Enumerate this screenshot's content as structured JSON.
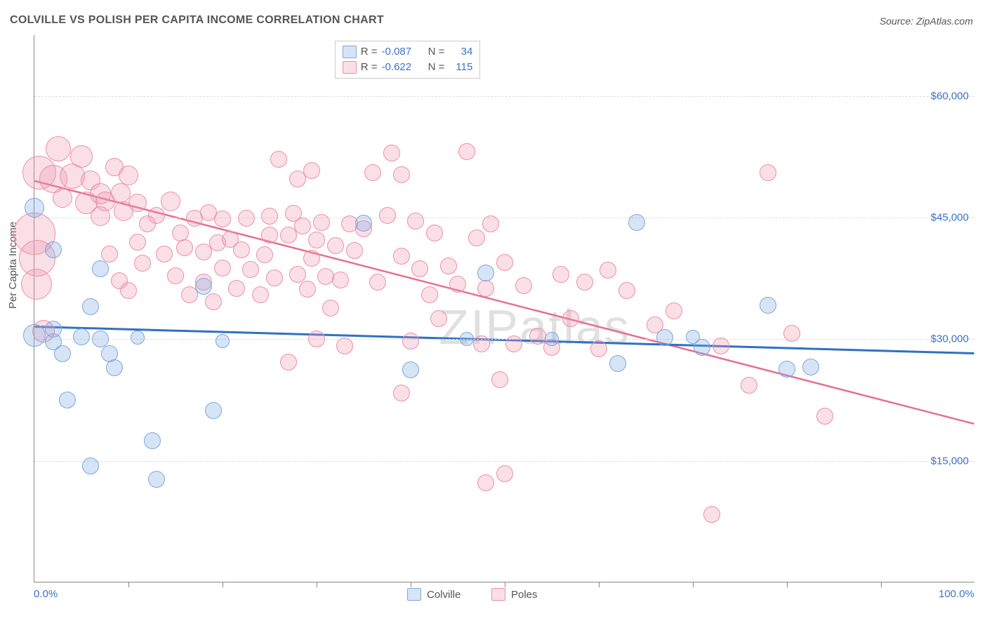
{
  "title": "COLVILLE VS POLISH PER CAPITA INCOME CORRELATION CHART",
  "source": "Source: ZipAtlas.com",
  "watermark": "ZIPatlas",
  "y_axis_title": "Per Capita Income",
  "chart": {
    "type": "scatter",
    "xlim": [
      0,
      100
    ],
    "ylim": [
      0,
      67500
    ],
    "x_tick_step_pct": 10,
    "y_ticks": [
      15000,
      30000,
      45000,
      60000
    ],
    "y_tick_labels": [
      "$15,000",
      "$30,000",
      "$45,000",
      "$60,000"
    ],
    "x_min_label": "0.0%",
    "x_max_label": "100.0%",
    "background_color": "#ffffff",
    "grid_color": "#dddddd",
    "series": {
      "colville": {
        "label": "Colville",
        "fill": "rgba(130,170,225,0.32)",
        "stroke": "#7da7de",
        "stroke_width": 1.2,
        "trend_color": "#2f71c4",
        "trend_width": 3,
        "trend": {
          "x1": 0,
          "y1": 31500,
          "x2": 100,
          "y2": 28200
        },
        "R": "-0.087",
        "N": "34",
        "points": [
          {
            "x": 0,
            "y": 46200,
            "r": 14
          },
          {
            "x": 0,
            "y": 30500,
            "r": 16
          },
          {
            "x": 2,
            "y": 41000,
            "r": 12
          },
          {
            "x": 2,
            "y": 31200,
            "r": 12
          },
          {
            "x": 2,
            "y": 29700,
            "r": 12
          },
          {
            "x": 3,
            "y": 28200,
            "r": 12
          },
          {
            "x": 3.5,
            "y": 22500,
            "r": 12
          },
          {
            "x": 5,
            "y": 30300,
            "r": 12
          },
          {
            "x": 7,
            "y": 38700,
            "r": 12
          },
          {
            "x": 7,
            "y": 30000,
            "r": 12
          },
          {
            "x": 8,
            "y": 28200,
            "r": 12
          },
          {
            "x": 6,
            "y": 34000,
            "r": 12
          },
          {
            "x": 8.5,
            "y": 26500,
            "r": 12
          },
          {
            "x": 6,
            "y": 14400,
            "r": 12
          },
          {
            "x": 11,
            "y": 30200,
            "r": 10
          },
          {
            "x": 12.5,
            "y": 17500,
            "r": 12
          },
          {
            "x": 13,
            "y": 12700,
            "r": 12
          },
          {
            "x": 18,
            "y": 36500,
            "r": 12
          },
          {
            "x": 19,
            "y": 21200,
            "r": 12
          },
          {
            "x": 20,
            "y": 29800,
            "r": 10
          },
          {
            "x": 35,
            "y": 44300,
            "r": 12
          },
          {
            "x": 40,
            "y": 26200,
            "r": 12
          },
          {
            "x": 46,
            "y": 30000,
            "r": 10
          },
          {
            "x": 48,
            "y": 38200,
            "r": 12
          },
          {
            "x": 55,
            "y": 30000,
            "r": 10
          },
          {
            "x": 62,
            "y": 27000,
            "r": 12
          },
          {
            "x": 64,
            "y": 44400,
            "r": 12
          },
          {
            "x": 67,
            "y": 30200,
            "r": 12
          },
          {
            "x": 70,
            "y": 30300,
            "r": 10
          },
          {
            "x": 71,
            "y": 29000,
            "r": 12
          },
          {
            "x": 78,
            "y": 34200,
            "r": 12
          },
          {
            "x": 80,
            "y": 26300,
            "r": 12
          },
          {
            "x": 82.5,
            "y": 26600,
            "r": 12
          }
        ]
      },
      "poles": {
        "label": "Poles",
        "fill": "rgba(240,150,175,0.30)",
        "stroke": "#ed8fa6",
        "stroke_width": 1.2,
        "trend_color": "#e76f8f",
        "trend_width": 2.5,
        "trend": {
          "x1": 0,
          "y1": 49500,
          "x2": 100,
          "y2": 19500
        },
        "R": "-0.622",
        "N": "115",
        "points": [
          {
            "x": 0,
            "y": 43000,
            "r": 30
          },
          {
            "x": 0.5,
            "y": 50500,
            "r": 24
          },
          {
            "x": 0.3,
            "y": 40000,
            "r": 26
          },
          {
            "x": 0.2,
            "y": 36800,
            "r": 22
          },
          {
            "x": 1,
            "y": 31000,
            "r": 16
          },
          {
            "x": 2,
            "y": 49800,
            "r": 20
          },
          {
            "x": 2.5,
            "y": 53500,
            "r": 18
          },
          {
            "x": 4,
            "y": 50100,
            "r": 18
          },
          {
            "x": 3,
            "y": 47400,
            "r": 14
          },
          {
            "x": 5.5,
            "y": 46800,
            "r": 16
          },
          {
            "x": 5,
            "y": 52500,
            "r": 16
          },
          {
            "x": 6,
            "y": 49600,
            "r": 14
          },
          {
            "x": 7,
            "y": 47900,
            "r": 15
          },
          {
            "x": 7,
            "y": 45200,
            "r": 14
          },
          {
            "x": 7.5,
            "y": 47000,
            "r": 14
          },
          {
            "x": 8.5,
            "y": 51200,
            "r": 13
          },
          {
            "x": 9.2,
            "y": 48000,
            "r": 14
          },
          {
            "x": 10,
            "y": 50200,
            "r": 14
          },
          {
            "x": 9.5,
            "y": 45800,
            "r": 14
          },
          {
            "x": 11,
            "y": 46800,
            "r": 13
          },
          {
            "x": 11,
            "y": 42000,
            "r": 12
          },
          {
            "x": 11.5,
            "y": 39400,
            "r": 12
          },
          {
            "x": 12,
            "y": 44200,
            "r": 12
          },
          {
            "x": 13,
            "y": 45300,
            "r": 12
          },
          {
            "x": 13.8,
            "y": 40500,
            "r": 12
          },
          {
            "x": 8,
            "y": 40500,
            "r": 12
          },
          {
            "x": 9,
            "y": 37200,
            "r": 12
          },
          {
            "x": 10,
            "y": 36000,
            "r": 12
          },
          {
            "x": 14.5,
            "y": 47000,
            "r": 14
          },
          {
            "x": 15,
            "y": 37800,
            "r": 12
          },
          {
            "x": 15.5,
            "y": 43100,
            "r": 12
          },
          {
            "x": 16,
            "y": 41300,
            "r": 12
          },
          {
            "x": 16.5,
            "y": 35500,
            "r": 12
          },
          {
            "x": 17,
            "y": 44900,
            "r": 12
          },
          {
            "x": 18,
            "y": 40800,
            "r": 12
          },
          {
            "x": 18,
            "y": 37000,
            "r": 12
          },
          {
            "x": 18.5,
            "y": 45600,
            "r": 12
          },
          {
            "x": 19.5,
            "y": 41900,
            "r": 12
          },
          {
            "x": 19,
            "y": 34600,
            "r": 12
          },
          {
            "x": 20,
            "y": 44800,
            "r": 12
          },
          {
            "x": 20,
            "y": 38800,
            "r": 12
          },
          {
            "x": 20.8,
            "y": 42300,
            "r": 12
          },
          {
            "x": 21.5,
            "y": 36300,
            "r": 12
          },
          {
            "x": 22.5,
            "y": 44900,
            "r": 12
          },
          {
            "x": 22,
            "y": 41000,
            "r": 12
          },
          {
            "x": 23,
            "y": 38600,
            "r": 12
          },
          {
            "x": 24,
            "y": 35500,
            "r": 12
          },
          {
            "x": 24.5,
            "y": 40400,
            "r": 12
          },
          {
            "x": 25,
            "y": 45200,
            "r": 12
          },
          {
            "x": 25,
            "y": 42800,
            "r": 12
          },
          {
            "x": 25.5,
            "y": 37600,
            "r": 12
          },
          {
            "x": 26,
            "y": 52200,
            "r": 12
          },
          {
            "x": 27,
            "y": 42800,
            "r": 12
          },
          {
            "x": 27.5,
            "y": 45500,
            "r": 12
          },
          {
            "x": 28,
            "y": 49800,
            "r": 12
          },
          {
            "x": 28,
            "y": 38000,
            "r": 12
          },
          {
            "x": 28.5,
            "y": 44000,
            "r": 12
          },
          {
            "x": 29,
            "y": 36200,
            "r": 12
          },
          {
            "x": 29.5,
            "y": 40000,
            "r": 12
          },
          {
            "x": 30.5,
            "y": 44400,
            "r": 12
          },
          {
            "x": 30,
            "y": 42200,
            "r": 12
          },
          {
            "x": 31,
            "y": 37700,
            "r": 12
          },
          {
            "x": 29.5,
            "y": 50800,
            "r": 12
          },
          {
            "x": 31.5,
            "y": 33800,
            "r": 12
          },
          {
            "x": 32,
            "y": 41500,
            "r": 12
          },
          {
            "x": 30,
            "y": 30000,
            "r": 12
          },
          {
            "x": 32.5,
            "y": 37300,
            "r": 12
          },
          {
            "x": 27,
            "y": 27200,
            "r": 12
          },
          {
            "x": 33,
            "y": 29200,
            "r": 12
          },
          {
            "x": 33.5,
            "y": 44200,
            "r": 12
          },
          {
            "x": 34,
            "y": 40900,
            "r": 12
          },
          {
            "x": 35,
            "y": 43600,
            "r": 12
          },
          {
            "x": 36,
            "y": 50500,
            "r": 12
          },
          {
            "x": 36.5,
            "y": 37000,
            "r": 12
          },
          {
            "x": 37.5,
            "y": 45300,
            "r": 12
          },
          {
            "x": 38,
            "y": 53000,
            "r": 12
          },
          {
            "x": 39,
            "y": 40200,
            "r": 12
          },
          {
            "x": 39,
            "y": 50300,
            "r": 12
          },
          {
            "x": 40,
            "y": 29800,
            "r": 12
          },
          {
            "x": 41,
            "y": 38700,
            "r": 12
          },
          {
            "x": 40.5,
            "y": 44600,
            "r": 12
          },
          {
            "x": 42,
            "y": 35500,
            "r": 12
          },
          {
            "x": 39,
            "y": 23400,
            "r": 12
          },
          {
            "x": 42.5,
            "y": 43100,
            "r": 12
          },
          {
            "x": 43,
            "y": 32500,
            "r": 12
          },
          {
            "x": 44,
            "y": 39000,
            "r": 12
          },
          {
            "x": 45,
            "y": 36800,
            "r": 12
          },
          {
            "x": 46,
            "y": 53100,
            "r": 12
          },
          {
            "x": 47,
            "y": 42500,
            "r": 12
          },
          {
            "x": 47.5,
            "y": 29400,
            "r": 12
          },
          {
            "x": 48,
            "y": 36300,
            "r": 12
          },
          {
            "x": 48.5,
            "y": 44200,
            "r": 12
          },
          {
            "x": 49.5,
            "y": 25000,
            "r": 12
          },
          {
            "x": 50,
            "y": 39500,
            "r": 12
          },
          {
            "x": 50,
            "y": 13400,
            "r": 12
          },
          {
            "x": 51,
            "y": 29400,
            "r": 12
          },
          {
            "x": 52,
            "y": 36600,
            "r": 12
          },
          {
            "x": 48,
            "y": 12300,
            "r": 12
          },
          {
            "x": 53.5,
            "y": 30400,
            "r": 12
          },
          {
            "x": 55,
            "y": 29000,
            "r": 12
          },
          {
            "x": 56,
            "y": 38000,
            "r": 12
          },
          {
            "x": 57,
            "y": 32500,
            "r": 12
          },
          {
            "x": 58.5,
            "y": 37000,
            "r": 12
          },
          {
            "x": 60,
            "y": 28800,
            "r": 12
          },
          {
            "x": 61,
            "y": 38500,
            "r": 12
          },
          {
            "x": 63,
            "y": 36000,
            "r": 12
          },
          {
            "x": 66,
            "y": 31800,
            "r": 12
          },
          {
            "x": 68,
            "y": 33500,
            "r": 12
          },
          {
            "x": 72,
            "y": 8400,
            "r": 12
          },
          {
            "x": 73,
            "y": 29200,
            "r": 12
          },
          {
            "x": 76,
            "y": 24300,
            "r": 12
          },
          {
            "x": 78,
            "y": 50500,
            "r": 12
          },
          {
            "x": 80.5,
            "y": 30700,
            "r": 12
          },
          {
            "x": 84,
            "y": 20500,
            "r": 12
          }
        ]
      }
    }
  },
  "stats_legend": {
    "rows": [
      {
        "swatch_fill": "rgba(130,170,225,0.32)",
        "swatch_stroke": "#7da7de",
        "R_label": "R =",
        "R_val": "-0.087",
        "N_label": "N =",
        "N_val": "34"
      },
      {
        "swatch_fill": "rgba(240,150,175,0.30)",
        "swatch_stroke": "#ed8fa6",
        "R_label": "R =",
        "R_val": "-0.622",
        "N_label": "N =",
        "N_val": "115"
      }
    ]
  },
  "bottom_legend": [
    {
      "swatch_fill": "rgba(130,170,225,0.32)",
      "swatch_stroke": "#7da7de",
      "label": "Colville"
    },
    {
      "swatch_fill": "rgba(240,150,175,0.30)",
      "swatch_stroke": "#ed8fa6",
      "label": "Poles"
    }
  ]
}
